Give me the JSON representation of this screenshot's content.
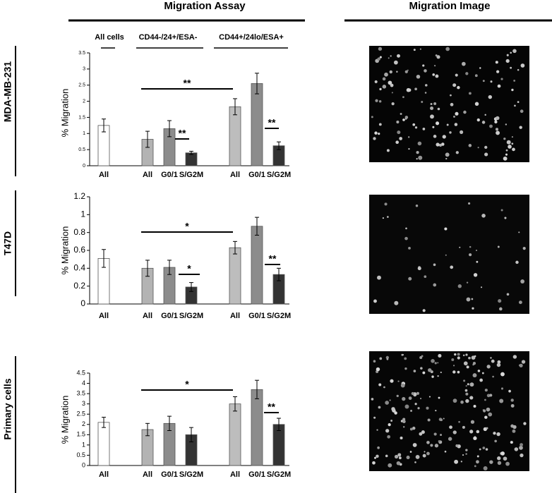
{
  "headers": [
    "Migration Assay",
    "Migration Image"
  ],
  "group_labels": [
    "All cells",
    "CD44-/24+/ESA-",
    "CD44+/24lo/ESA+"
  ],
  "chart_data": [
    {
      "type": "bar",
      "title": "MDA-MB-231",
      "y_label": "% Migration",
      "categories": [
        "All",
        null,
        "All",
        "G0/1",
        "S/G2M",
        null,
        "All",
        "G0/1",
        "S/G2M"
      ],
      "values": [
        1.25,
        null,
        0.82,
        1.15,
        0.4,
        null,
        1.83,
        2.55,
        0.62
      ],
      "errors": [
        0.2,
        null,
        0.25,
        0.25,
        0.05,
        null,
        0.25,
        0.32,
        0.12
      ],
      "colors": [
        "#ffffff",
        null,
        "#b3b3b3",
        "#8c8c8c",
        "#333333",
        null,
        "#bdbdbd",
        "#8c8c8c",
        "#333333"
      ],
      "ylim": [
        0,
        3.5
      ],
      "yticks": [
        0,
        0.5,
        1,
        1.5,
        2,
        2.5,
        3,
        3.5
      ],
      "annotations": [
        "**",
        "**",
        "**"
      ]
    },
    {
      "type": "bar",
      "title": "T47D",
      "y_label": "% Migration",
      "categories": [
        "All",
        null,
        "All",
        "G0/1",
        "S/G2M",
        null,
        "All",
        "G0/1",
        "S/G2M"
      ],
      "values": [
        0.51,
        null,
        0.4,
        0.41,
        0.19,
        null,
        0.63,
        0.87,
        0.33
      ],
      "errors": [
        0.1,
        null,
        0.09,
        0.08,
        0.05,
        null,
        0.07,
        0.1,
        0.07
      ],
      "colors": [
        "#ffffff",
        null,
        "#b3b3b3",
        "#8c8c8c",
        "#333333",
        null,
        "#bdbdbd",
        "#8c8c8c",
        "#333333"
      ],
      "ylim": [
        0,
        1.2
      ],
      "yticks": [
        0,
        0.2,
        0.4,
        0.6,
        0.8,
        1,
        1.2
      ],
      "annotations": [
        "*",
        "*",
        "**"
      ]
    },
    {
      "type": "bar",
      "title": "Primary cells",
      "y_label": "% Migration",
      "categories": [
        "All",
        null,
        "All",
        "G0/1",
        "S/G2M",
        null,
        "All",
        "G0/1",
        "S/G2M"
      ],
      "values": [
        2.1,
        null,
        1.75,
        2.05,
        1.5,
        null,
        3.0,
        3.7,
        2.0
      ],
      "errors": [
        0.25,
        null,
        0.3,
        0.35,
        0.35,
        null,
        0.35,
        0.45,
        0.3
      ],
      "colors": [
        "#ffffff",
        null,
        "#b3b3b3",
        "#8c8c8c",
        "#333333",
        null,
        "#bdbdbd",
        "#8c8c8c",
        "#333333"
      ],
      "ylim": [
        0,
        4.5
      ],
      "yticks": [
        0,
        0.5,
        1,
        1.5,
        2,
        2.5,
        3,
        3.5,
        4,
        4.5
      ],
      "annotations": [
        "*",
        "**"
      ]
    }
  ]
}
